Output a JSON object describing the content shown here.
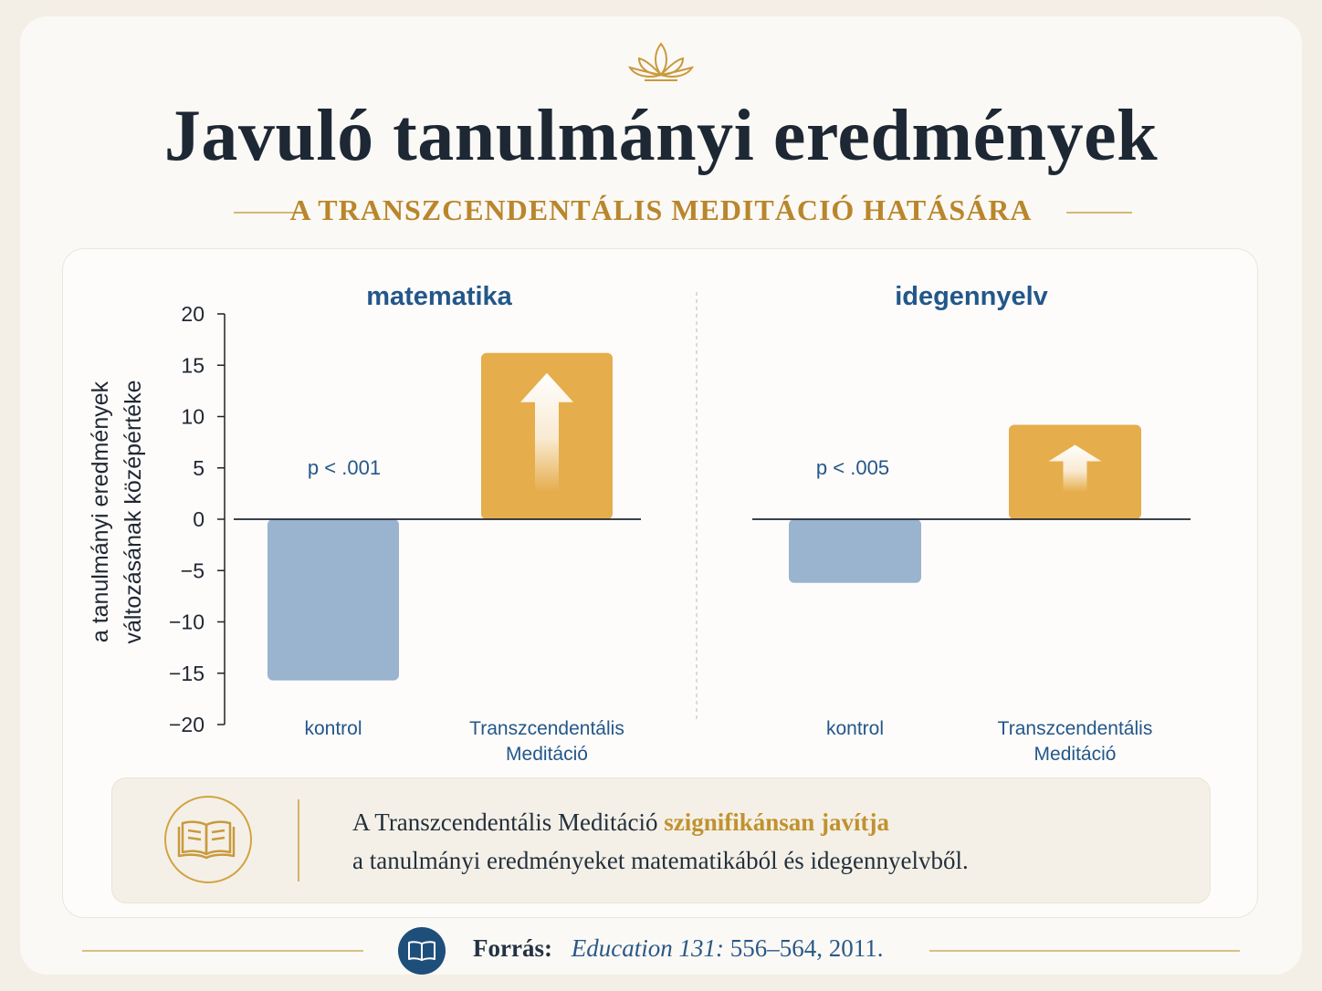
{
  "header": {
    "title": "Javuló tanulmányi eredmények",
    "subtitle": "A TRANSZCENDENTÁLIS MEDITÁCIÓ HATÁSÁRA"
  },
  "chart_data": {
    "type": "bar",
    "ylabel": "a tanulmányi eredmények változásának középértéke",
    "ylabel_lines": [
      "a tanulmányi eredmények",
      "változásának középértéke"
    ],
    "ylim": [
      -20,
      20
    ],
    "yticks": [
      "20",
      "15",
      "10",
      "5",
      "0",
      "−5",
      "−10",
      "−15",
      "−20"
    ],
    "grid": false,
    "panels": [
      {
        "title": "matematika",
        "categories": [
          "kontrol",
          "Transzcendentális Meditáció"
        ],
        "category_lines": [
          [
            "kontrol"
          ],
          [
            "Transzcendentális",
            "Meditáció"
          ]
        ],
        "values": [
          -15.7,
          16.2
        ],
        "annotation": "p < .001"
      },
      {
        "title": "idegennyelv",
        "categories": [
          "kontrol",
          "Transzcendentális Meditáció"
        ],
        "category_lines": [
          [
            "kontrol"
          ],
          [
            "Transzcendentális",
            "Meditáció"
          ]
        ],
        "values": [
          -6.2,
          9.2
        ],
        "annotation": "p < .005"
      }
    ],
    "colors": {
      "kontrol": "#9ab3cf",
      "meditacio": "#e6ad4c",
      "title": "#23578a"
    }
  },
  "note": {
    "prefix": "A Transzcendentális Meditáció",
    "highlight": "szignifikánsan javítja",
    "line2": "a tanulmányi eredményeket matematikából és idegennyelvből."
  },
  "footer": {
    "label": "Forrás:",
    "cite_italic": "Education 131:",
    "cite_rest": "556–564, 2011."
  }
}
